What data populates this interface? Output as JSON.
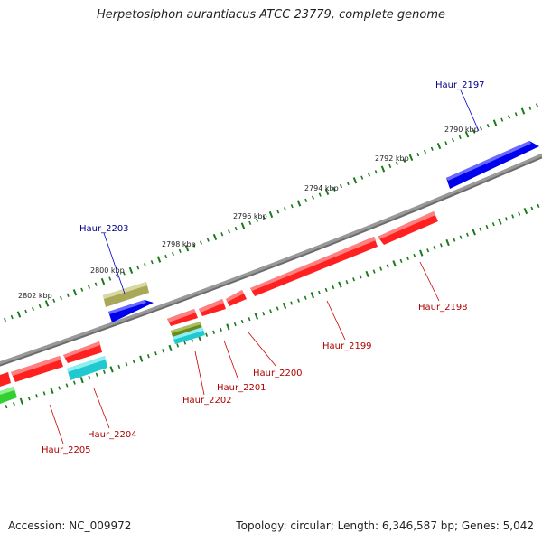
{
  "title": "Herpetosiphon aurantiacus ATCC 23779, complete genome",
  "footer": {
    "accession": "Accession: NC_009972",
    "topology": "Topology: circular; Length: 6,346,587 bp; Genes: 5,042"
  },
  "colors": {
    "backbone": "#808080",
    "tick": "#1a7a1a",
    "plus_label": "#00008b",
    "minus_label": "#b00000",
    "red_gene": "#ff0000",
    "blue_gene": "#0000ee",
    "khaki_gene": "#b0b060",
    "cyan_gene": "#20c8d0",
    "olive_gene": "#6a8a20",
    "green_gene": "#30d030"
  },
  "scale_labels": [
    "2790 kbp",
    "2792 kbp",
    "2794 kbp",
    "2796 kbp",
    "2798 kbp",
    "2800 kbp",
    "2802 kbp"
  ],
  "genes": [
    {
      "label": "Haur_2197",
      "strand": "plus",
      "color_name": "blue"
    },
    {
      "label": "Haur_2198",
      "strand": "minus",
      "color_name": "red"
    },
    {
      "label": "Haur_2199",
      "strand": "minus",
      "color_name": "red"
    },
    {
      "label": "Haur_2200",
      "strand": "minus",
      "color_name": "red"
    },
    {
      "label": "Haur_2201",
      "strand": "minus",
      "color_name": "red"
    },
    {
      "label": "Haur_2202",
      "strand": "minus",
      "color_name": "red"
    },
    {
      "label": "Haur_2203",
      "strand": "plus",
      "color_name": "blue"
    },
    {
      "label": "Haur_2204",
      "strand": "minus",
      "color_name": "red"
    },
    {
      "label": "Haur_2205",
      "strand": "minus",
      "color_name": "red"
    }
  ]
}
